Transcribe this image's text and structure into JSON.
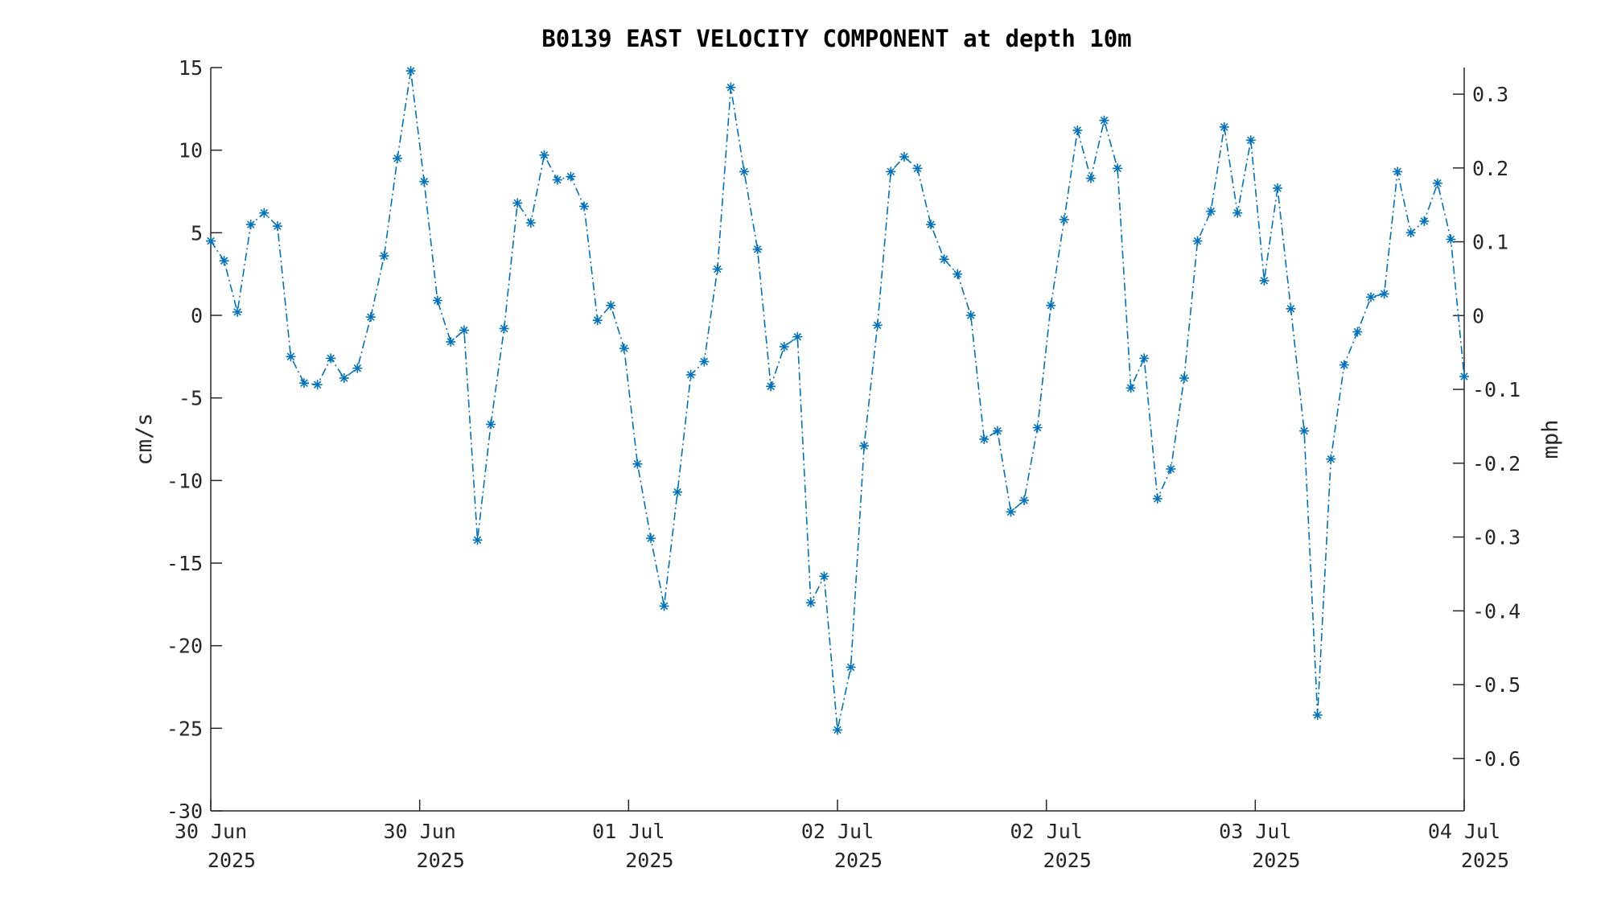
{
  "chart_data": {
    "type": "line",
    "title": "B0139 EAST VELOCITY COMPONENT at depth 10m",
    "ylabel": "cm/s",
    "y2label": "mph",
    "ylim": [
      -30,
      15
    ],
    "y2lim": [
      -0.671,
      0.336
    ],
    "yticks": [
      "15",
      "10",
      "5",
      "0",
      "-5",
      "-10",
      "-15",
      "-20",
      "-25",
      "-30"
    ],
    "y2ticks": [
      "0.3",
      "0.2",
      "0.1",
      "0",
      "-0.1",
      "-0.2",
      "-0.3",
      "-0.4",
      "-0.5",
      "-0.6"
    ],
    "xlim": [
      "2025-06-30T00:00",
      "2025-07-04T00:00"
    ],
    "xticks": [
      {
        "day": "30 Jun",
        "year": "2025"
      },
      {
        "day": "30 Jun",
        "year": "2025"
      },
      {
        "day": "01 Jul",
        "year": "2025"
      },
      {
        "day": "02 Jul",
        "year": "2025"
      },
      {
        "day": "02 Jul",
        "year": "2025"
      },
      {
        "day": "03 Jul",
        "year": "2025"
      },
      {
        "day": "04 Jul",
        "year": "2025"
      }
    ],
    "grid": false,
    "series": [
      {
        "color": "#0072bd",
        "line_style": "dash-dot",
        "marker": "asterisk",
        "values": [
          4.5,
          3.3,
          0.2,
          5.5,
          6.2,
          5.4,
          -2.5,
          -4.1,
          -4.2,
          -2.6,
          -3.8,
          -3.2,
          -0.1,
          3.6,
          9.5,
          14.8,
          8.1,
          0.9,
          -1.6,
          -0.9,
          -13.6,
          -6.6,
          -0.8,
          6.8,
          5.6,
          9.7,
          8.2,
          8.4,
          6.6,
          -0.3,
          0.6,
          -2.0,
          -9.0,
          -13.5,
          -17.6,
          -10.7,
          -3.6,
          -2.8,
          2.8,
          13.8,
          8.7,
          4.0,
          -4.3,
          -1.9,
          -1.3,
          -17.4,
          -15.8,
          -25.1,
          -21.3,
          -7.9,
          -0.6,
          8.7,
          9.6,
          8.9,
          5.5,
          3.4,
          2.5,
          0.0,
          -7.5,
          -7.0,
          -11.9,
          -11.2,
          -6.8,
          0.6,
          5.8,
          11.2,
          8.3,
          11.8,
          8.9,
          -4.4,
          -2.6,
          -11.1,
          -9.3,
          -3.8,
          4.5,
          6.3,
          11.4,
          6.2,
          10.6,
          2.1,
          7.7,
          0.4,
          -7.0,
          -24.2,
          -8.7,
          -3.0,
          -1.0,
          1.1,
          1.3,
          8.7,
          5.0,
          5.7,
          8.0,
          4.6,
          -3.7
        ]
      }
    ]
  }
}
